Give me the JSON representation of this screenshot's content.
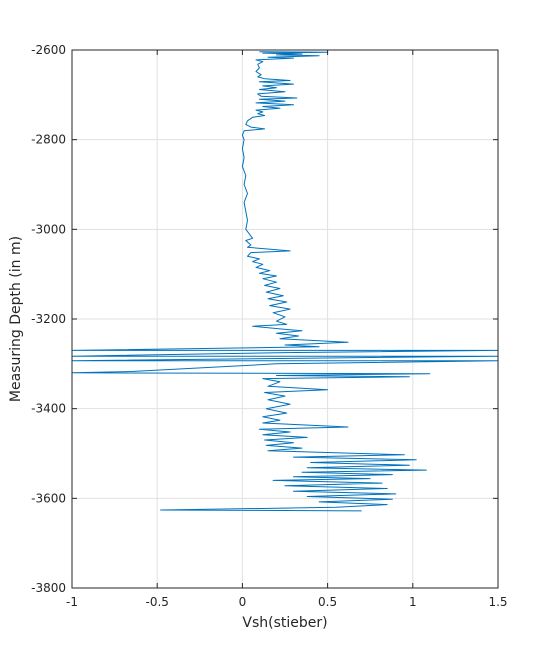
{
  "chart_data": {
    "type": "line",
    "title": "",
    "xlabel": "Vsh(stieber)",
    "ylabel": "Measuring Depth (in m)",
    "xlim": [
      -1,
      1.5
    ],
    "ylim": [
      -3800,
      -2600
    ],
    "xticks": [
      -1,
      -0.5,
      0,
      0.5,
      1,
      1.5
    ],
    "xtick_labels": [
      "-1",
      "-0.5",
      "0",
      "0.5",
      "1",
      "1.5"
    ],
    "yticks": [
      -2600,
      -2800,
      -3000,
      -3200,
      -3400,
      -3600,
      -3800
    ],
    "ytick_labels": [
      "-2600",
      "-2800",
      "-3000",
      "-3200",
      "-3400",
      "-3600",
      "-3800"
    ],
    "grid": true,
    "series": [
      {
        "color": "#0072BD",
        "points": [
          [
            0.1,
            -2604
          ],
          [
            0.5,
            -2605
          ],
          [
            0.12,
            -2607
          ],
          [
            0.35,
            -2609
          ],
          [
            0.2,
            -2611
          ],
          [
            0.45,
            -2613
          ],
          [
            0.15,
            -2616
          ],
          [
            0.3,
            -2618
          ],
          [
            0.08,
            -2622
          ],
          [
            0.12,
            -2626
          ],
          [
            0.09,
            -2632
          ],
          [
            0.1,
            -2640
          ],
          [
            0.08,
            -2648
          ],
          [
            0.11,
            -2655
          ],
          [
            0.09,
            -2660
          ],
          [
            0.13,
            -2664
          ],
          [
            0.28,
            -2668
          ],
          [
            0.1,
            -2671
          ],
          [
            0.3,
            -2676
          ],
          [
            0.12,
            -2680
          ],
          [
            0.2,
            -2684
          ],
          [
            0.1,
            -2688
          ],
          [
            0.25,
            -2693
          ],
          [
            0.09,
            -2698
          ],
          [
            0.11,
            -2703
          ],
          [
            0.32,
            -2707
          ],
          [
            0.1,
            -2710
          ],
          [
            0.25,
            -2714
          ],
          [
            0.08,
            -2718
          ],
          [
            0.3,
            -2722
          ],
          [
            0.12,
            -2726
          ],
          [
            0.22,
            -2730
          ],
          [
            0.08,
            -2734
          ],
          [
            0.12,
            -2738
          ],
          [
            0.09,
            -2742
          ],
          [
            0.13,
            -2746
          ],
          [
            0.06,
            -2750
          ],
          [
            0.03,
            -2758
          ],
          [
            0.02,
            -2766
          ],
          [
            0.05,
            -2772
          ],
          [
            0.13,
            -2776
          ],
          [
            0.01,
            -2780
          ],
          [
            0.0,
            -2790
          ],
          [
            0.01,
            -2800
          ],
          [
            0.0,
            -2820
          ],
          [
            0.01,
            -2840
          ],
          [
            0.0,
            -2860
          ],
          [
            0.02,
            -2880
          ],
          [
            0.01,
            -2900
          ],
          [
            0.03,
            -2920
          ],
          [
            0.01,
            -2940
          ],
          [
            0.02,
            -2960
          ],
          [
            0.03,
            -2980
          ],
          [
            0.02,
            -3000
          ],
          [
            0.04,
            -3010
          ],
          [
            0.06,
            -3020
          ],
          [
            0.02,
            -3025
          ],
          [
            0.05,
            -3035
          ],
          [
            0.03,
            -3040
          ],
          [
            0.28,
            -3048
          ],
          [
            0.05,
            -3052
          ],
          [
            0.03,
            -3060
          ],
          [
            0.1,
            -3066
          ],
          [
            0.06,
            -3072
          ],
          [
            0.12,
            -3078
          ],
          [
            0.08,
            -3085
          ],
          [
            0.16,
            -3092
          ],
          [
            0.1,
            -3098
          ],
          [
            0.2,
            -3104
          ],
          [
            0.12,
            -3110
          ],
          [
            0.2,
            -3118
          ],
          [
            0.13,
            -3125
          ],
          [
            0.22,
            -3132
          ],
          [
            0.14,
            -3140
          ],
          [
            0.24,
            -3148
          ],
          [
            0.15,
            -3155
          ],
          [
            0.26,
            -3162
          ],
          [
            0.16,
            -3170
          ],
          [
            0.28,
            -3178
          ],
          [
            0.18,
            -3186
          ],
          [
            0.25,
            -3195
          ],
          [
            0.2,
            -3205
          ],
          [
            0.26,
            -3212
          ],
          [
            0.06,
            -3216
          ],
          [
            0.22,
            -3222
          ],
          [
            0.35,
            -3226
          ],
          [
            0.2,
            -3232
          ],
          [
            0.33,
            -3238
          ],
          [
            0.22,
            -3244
          ],
          [
            0.62,
            -3252
          ],
          [
            0.25,
            -3258
          ],
          [
            0.45,
            -3262
          ],
          [
            -1.0,
            -3270
          ],
          [
            1.5,
            -3270
          ],
          [
            0.25,
            -3275
          ],
          [
            -1.0,
            -3283
          ],
          [
            1.5,
            -3283
          ],
          [
            0.22,
            -3288
          ],
          [
            -1.0,
            -3293
          ],
          [
            1.5,
            -3293
          ],
          [
            0.2,
            -3300
          ],
          [
            -0.65,
            -3317
          ],
          [
            -1.0,
            -3320
          ],
          [
            1.1,
            -3322
          ],
          [
            0.2,
            -3326
          ],
          [
            0.98,
            -3329
          ],
          [
            0.12,
            -3333
          ],
          [
            0.22,
            -3340
          ],
          [
            0.15,
            -3350
          ],
          [
            0.5,
            -3358
          ],
          [
            0.13,
            -3364
          ],
          [
            0.25,
            -3372
          ],
          [
            0.15,
            -3380
          ],
          [
            0.28,
            -3390
          ],
          [
            0.14,
            -3400
          ],
          [
            0.26,
            -3410
          ],
          [
            0.12,
            -3418
          ],
          [
            0.22,
            -3426
          ],
          [
            0.12,
            -3432
          ],
          [
            0.62,
            -3441
          ],
          [
            0.1,
            -3446
          ],
          [
            0.28,
            -3452
          ],
          [
            0.12,
            -3458
          ],
          [
            0.38,
            -3464
          ],
          [
            0.13,
            -3470
          ],
          [
            0.3,
            -3476
          ],
          [
            0.14,
            -3482
          ],
          [
            0.35,
            -3488
          ],
          [
            0.15,
            -3494
          ],
          [
            0.95,
            -3503
          ],
          [
            0.3,
            -3508
          ],
          [
            1.02,
            -3514
          ],
          [
            0.4,
            -3520
          ],
          [
            0.98,
            -3526
          ],
          [
            0.38,
            -3532
          ],
          [
            1.08,
            -3537
          ],
          [
            0.35,
            -3542
          ],
          [
            0.88,
            -3547
          ],
          [
            0.3,
            -3552
          ],
          [
            0.75,
            -3556
          ],
          [
            0.18,
            -3560
          ],
          [
            0.82,
            -3566
          ],
          [
            0.25,
            -3572
          ],
          [
            0.85,
            -3578
          ],
          [
            0.3,
            -3584
          ],
          [
            0.9,
            -3590
          ],
          [
            0.38,
            -3596
          ],
          [
            0.88,
            -3602
          ],
          [
            0.45,
            -3608
          ],
          [
            0.85,
            -3614
          ],
          [
            0.55,
            -3620
          ],
          [
            -0.48,
            -3626
          ],
          [
            0.7,
            -3628
          ]
        ]
      }
    ]
  }
}
